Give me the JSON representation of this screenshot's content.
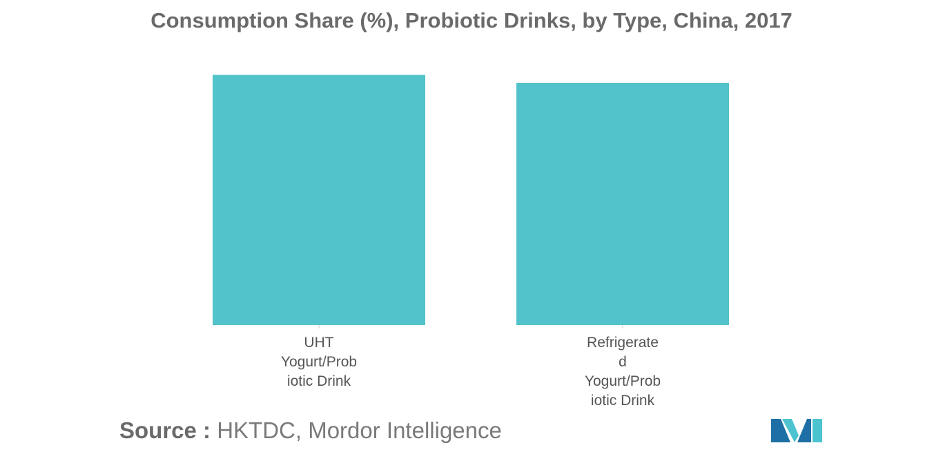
{
  "chart_data": {
    "type": "bar",
    "title": "Consumption Share (%), Probiotic Drinks, by Type, China, 2017",
    "categories": [
      [
        "UHT",
        "Yogurt/Prob",
        "iotic Drink"
      ],
      [
        "Refrigerate",
        "d",
        "Yogurt/Prob",
        "iotic Drink"
      ]
    ],
    "values": [
      50.8,
      49.2
    ],
    "ylim": [
      0,
      52
    ],
    "grid": false,
    "legend": "none",
    "color": "#52c3ca"
  },
  "source": {
    "label": "Source :",
    "text": "HKTDC, Mordor Intelligence"
  },
  "colors": {
    "bar": "#52c3ca",
    "logo_dark": "#1d6fa5",
    "logo_light": "#4cc3cf"
  }
}
